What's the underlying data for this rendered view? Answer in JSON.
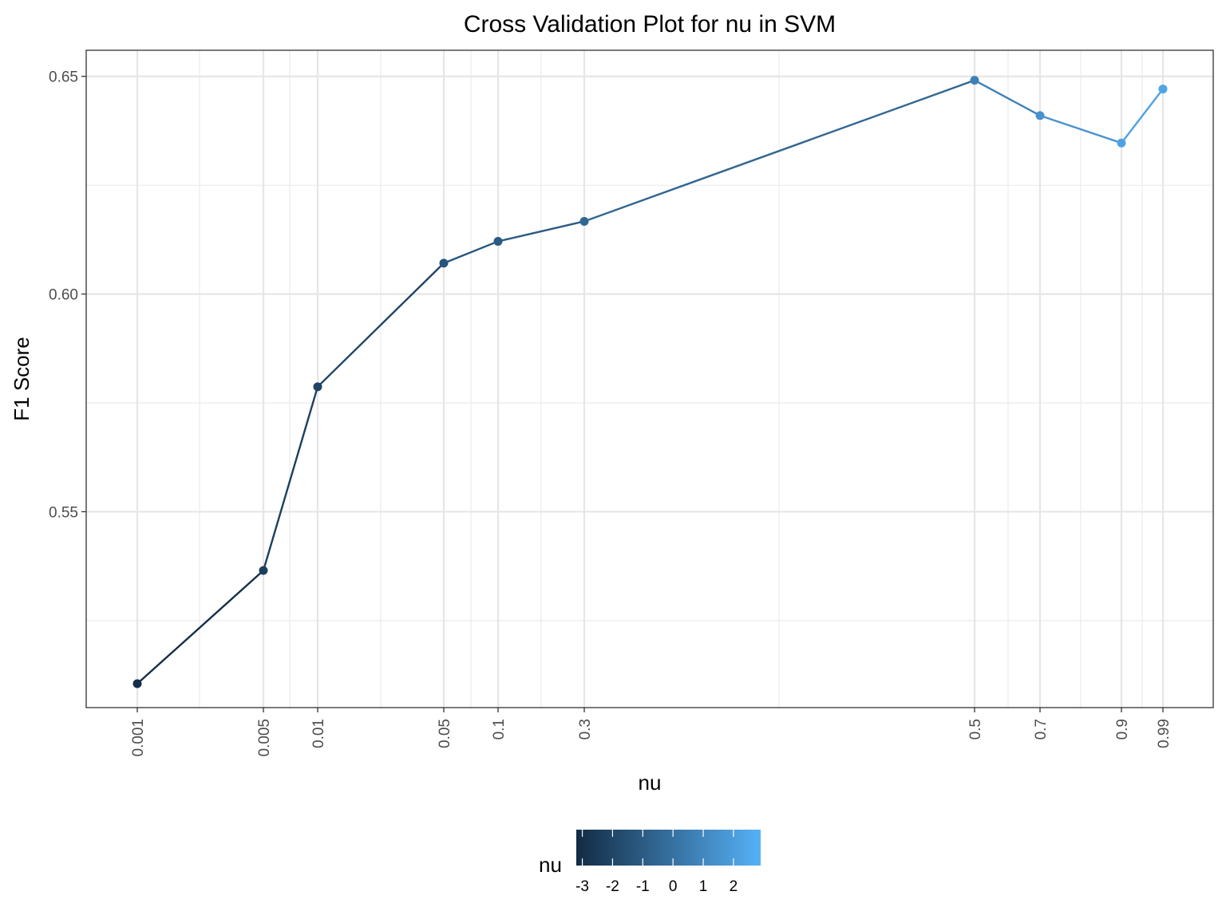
{
  "chart_data": {
    "type": "line",
    "title": "Cross Validation Plot for nu in SVM",
    "xlabel": "nu",
    "ylabel": "F1 Score",
    "x_scale": "log-like (categorical ticks at nu values)",
    "x_ticks": [
      "0.001",
      "0.005",
      "0.01",
      "0.05",
      "0.1",
      "0.3",
      "0.5",
      "0.7",
      "0.9",
      "0.99"
    ],
    "y_ticks": [
      "0.55",
      "0.60",
      "0.65"
    ],
    "ylim": [
      0.505,
      0.656
    ],
    "grid": true,
    "series": [
      {
        "points": [
          {
            "x": "0.001",
            "y": 0.5105,
            "color_value": -3.0
          },
          {
            "x": "0.005",
            "y": 0.5365,
            "color_value": -2.3
          },
          {
            "x": "0.01",
            "y": 0.5787,
            "color_value": -2.0
          },
          {
            "x": "0.05",
            "y": 0.6071,
            "color_value": -1.3
          },
          {
            "x": "0.1",
            "y": 0.6121,
            "color_value": -1.0
          },
          {
            "x": "0.3",
            "y": 0.6167,
            "color_value": -0.52
          },
          {
            "x": "0.5",
            "y": 0.6491,
            "color_value": 0.7
          },
          {
            "x": "0.7",
            "y": 0.641,
            "color_value": 1.5
          },
          {
            "x": "0.9",
            "y": 0.6347,
            "color_value": 2.2
          },
          {
            "x": "0.99",
            "y": 0.6471,
            "color_value": 2.3
          }
        ]
      }
    ],
    "legend": {
      "title": "nu",
      "position": "bottom",
      "type": "colorbar",
      "range": [
        -3.2,
        2.9
      ],
      "ticks": [
        "-3",
        "-2",
        "-1",
        "0",
        "1",
        "2"
      ],
      "color_low": "#132B43",
      "color_high": "#56B1F7"
    }
  }
}
